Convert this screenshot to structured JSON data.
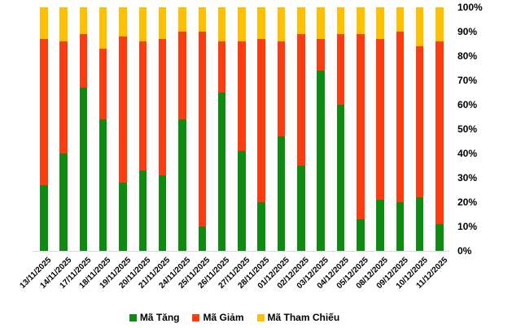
{
  "chart_data": {
    "type": "bar",
    "stacked": true,
    "percent_stacked": true,
    "title": "",
    "xlabel": "",
    "ylabel": "",
    "ylim": [
      0,
      100
    ],
    "grid": false,
    "legend_position": "bottom",
    "axis_line_color": "#d9d9d9",
    "text_color": "#000000",
    "background_color": "#ffffff",
    "y_ticks": [
      "0%",
      "10%",
      "20%",
      "30%",
      "40%",
      "50%",
      "60%",
      "70%",
      "80%",
      "90%",
      "100%"
    ],
    "categories": [
      "13/11/2025",
      "14/11/2025",
      "17/11/2025",
      "18/11/2025",
      "19/11/2025",
      "20/11/2025",
      "21/11/2025",
      "24/11/2025",
      "25/11/2025",
      "26/11/2025",
      "27/11/2025",
      "28/11/2025",
      "01/12/2025",
      "02/12/2025",
      "03/12/2025",
      "04/12/2025",
      "05/12/2025",
      "08/12/2025",
      "09/12/2025",
      "10/12/2025",
      "11/12/2025"
    ],
    "series": [
      {
        "name": "Mã Tăng",
        "color": "#0e8c12",
        "values": [
          27,
          40,
          67,
          54,
          28,
          33,
          31,
          54,
          10,
          65,
          41,
          20,
          47,
          35,
          74,
          60,
          13,
          21,
          20,
          22,
          11
        ]
      },
      {
        "name": "Mã Giảm",
        "color": "#fd3c10",
        "values": [
          60,
          46,
          22,
          29,
          60,
          53,
          56,
          36,
          80,
          21,
          45,
          67,
          39,
          54,
          13,
          29,
          76,
          66,
          70,
          62,
          75
        ]
      },
      {
        "name": "Mã Tham Chiếu",
        "color": "#ffc000",
        "values": [
          13,
          14,
          11,
          17,
          12,
          14,
          13,
          10,
          10,
          14,
          14,
          13,
          14,
          11,
          13,
          11,
          11,
          13,
          10,
          16,
          14
        ]
      }
    ]
  }
}
